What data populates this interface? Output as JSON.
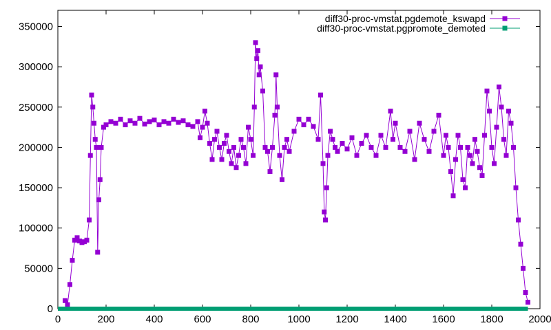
{
  "chart_data": {
    "type": "line",
    "title": "",
    "xlabel": "",
    "ylabel": "",
    "xlim": [
      0,
      2000
    ],
    "ylim": [
      0,
      370000
    ],
    "xticks": [
      0,
      200,
      400,
      600,
      800,
      1000,
      1200,
      1400,
      1600,
      1800,
      2000
    ],
    "yticks": [
      0,
      50000,
      100000,
      150000,
      200000,
      250000,
      300000,
      350000
    ],
    "xtick_labels": [
      "0",
      "200",
      "400",
      "600",
      "800",
      "1000",
      "1200",
      "1400",
      "1600",
      "1800",
      "2000"
    ],
    "ytick_labels": [
      "0",
      "50000",
      "100000",
      "150000",
      "200000",
      "250000",
      "300000",
      "350000"
    ],
    "grid": false,
    "legend_position": "top-right",
    "series": [
      {
        "name": "diff30-proc-vmstat.pgdemote_kswapd",
        "color": "#9400d3",
        "marker": "square",
        "x": [
          30,
          40,
          50,
          60,
          70,
          80,
          90,
          100,
          110,
          120,
          130,
          135,
          140,
          145,
          150,
          155,
          160,
          165,
          170,
          175,
          180,
          190,
          200,
          220,
          240,
          260,
          280,
          300,
          320,
          340,
          360,
          380,
          400,
          420,
          440,
          460,
          480,
          500,
          520,
          540,
          560,
          580,
          590,
          600,
          610,
          620,
          630,
          640,
          650,
          660,
          670,
          680,
          690,
          700,
          710,
          720,
          730,
          740,
          750,
          760,
          770,
          780,
          790,
          800,
          810,
          815,
          820,
          825,
          830,
          835,
          840,
          850,
          860,
          870,
          880,
          890,
          900,
          905,
          910,
          920,
          930,
          940,
          950,
          960,
          980,
          1000,
          1020,
          1040,
          1060,
          1080,
          1090,
          1100,
          1105,
          1110,
          1115,
          1120,
          1130,
          1140,
          1150,
          1160,
          1180,
          1200,
          1220,
          1240,
          1260,
          1280,
          1300,
          1320,
          1340,
          1360,
          1380,
          1390,
          1400,
          1420,
          1440,
          1460,
          1480,
          1500,
          1520,
          1540,
          1560,
          1580,
          1600,
          1610,
          1620,
          1630,
          1640,
          1650,
          1660,
          1670,
          1680,
          1690,
          1700,
          1710,
          1720,
          1730,
          1740,
          1750,
          1760,
          1770,
          1780,
          1790,
          1800,
          1810,
          1820,
          1830,
          1840,
          1850,
          1860,
          1870,
          1880,
          1890,
          1900,
          1910,
          1920,
          1930,
          1940,
          1950
        ],
        "values": [
          10000,
          5000,
          30000,
          60000,
          85000,
          88000,
          84000,
          82000,
          83000,
          85000,
          110000,
          190000,
          265000,
          250000,
          230000,
          210000,
          200000,
          70000,
          135000,
          160000,
          200000,
          225000,
          228000,
          232000,
          230000,
          235000,
          228000,
          233000,
          230000,
          236000,
          229000,
          232000,
          234000,
          228000,
          232000,
          230000,
          235000,
          231000,
          233000,
          228000,
          226000,
          232000,
          212000,
          225000,
          245000,
          230000,
          205000,
          185000,
          210000,
          220000,
          200000,
          185000,
          205000,
          215000,
          195000,
          180000,
          200000,
          175000,
          190000,
          210000,
          200000,
          180000,
          225000,
          210000,
          190000,
          250000,
          330000,
          310000,
          320000,
          290000,
          300000,
          270000,
          200000,
          195000,
          170000,
          200000,
          240000,
          290000,
          250000,
          190000,
          160000,
          200000,
          210000,
          195000,
          220000,
          235000,
          228000,
          235000,
          226000,
          210000,
          265000,
          180000,
          120000,
          110000,
          150000,
          190000,
          220000,
          210000,
          200000,
          195000,
          205000,
          198000,
          212000,
          190000,
          205000,
          215000,
          200000,
          190000,
          215000,
          200000,
          245000,
          210000,
          230000,
          200000,
          195000,
          220000,
          185000,
          230000,
          210000,
          195000,
          220000,
          240000,
          190000,
          215000,
          200000,
          170000,
          140000,
          185000,
          215000,
          200000,
          160000,
          150000,
          200000,
          190000,
          180000,
          210000,
          195000,
          175000,
          165000,
          215000,
          270000,
          245000,
          200000,
          180000,
          225000,
          275000,
          250000,
          210000,
          190000,
          245000,
          230000,
          200000,
          150000,
          110000,
          80000,
          50000,
          20000,
          8000
        ],
        "visible": true
      },
      {
        "name": "diff30-proc-vmstat.pgpromote_demoted",
        "color": "#009e73",
        "marker": "square",
        "x": [
          0,
          1950
        ],
        "values": [
          0,
          0
        ],
        "visible": true
      }
    ]
  }
}
